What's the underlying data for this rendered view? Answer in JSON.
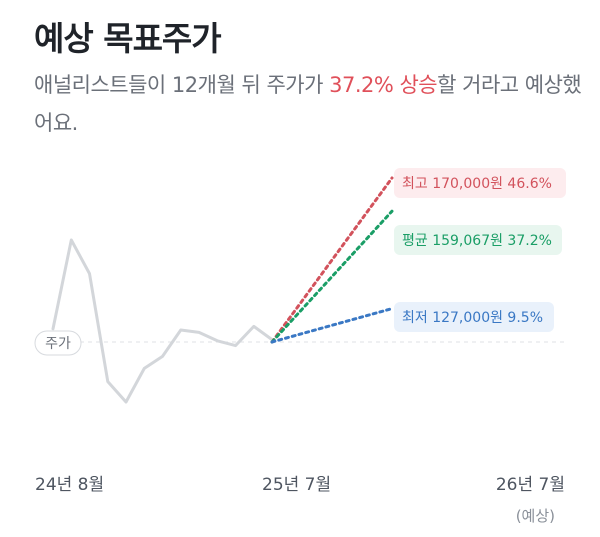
{
  "header": {
    "title": "예상 목표주가",
    "subtitle_prefix": "애널리스트들이 12개월 뒤 주가가 ",
    "subtitle_highlight": "37.2% 상승",
    "subtitle_suffix": "할 거라고 예상했어요."
  },
  "chart_data": {
    "type": "line",
    "x_ticks": [
      "24년 8월",
      "25년 7월",
      "26년 7월"
    ],
    "x_tick_note": "(예상)",
    "price_label": "주가",
    "history": {
      "values": [
        66,
        140,
        112,
        22,
        5,
        33,
        43,
        65,
        63,
        56,
        52,
        68,
        57
      ]
    },
    "current_price": 116000,
    "targets": [
      {
        "key": "high",
        "label": "최고",
        "price": "170,000원",
        "pct": "46.6%",
        "value": 170000,
        "color": "#d2525c",
        "bg": "#fdecee"
      },
      {
        "key": "avg",
        "label": "평균",
        "price": "159,067원",
        "pct": "37.2%",
        "value": 159067,
        "color": "#1a9e66",
        "bg": "#e8f6ef"
      },
      {
        "key": "low",
        "label": "최저",
        "price": "127,000원",
        "pct": "9.5%",
        "value": 127000,
        "color": "#3a78c4",
        "bg": "#e9f1fb"
      }
    ],
    "colors": {
      "history_line": "#d3d6da",
      "baseline": "#dfe2e6"
    }
  }
}
